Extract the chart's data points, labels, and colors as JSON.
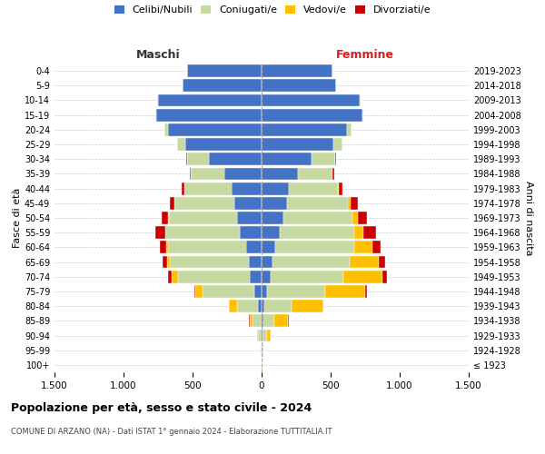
{
  "age_groups": [
    "100+",
    "95-99",
    "90-94",
    "85-89",
    "80-84",
    "75-79",
    "70-74",
    "65-69",
    "60-64",
    "55-59",
    "50-54",
    "45-49",
    "40-44",
    "35-39",
    "30-34",
    "25-29",
    "20-24",
    "15-19",
    "10-14",
    "5-9",
    "0-4"
  ],
  "birth_years": [
    "≤ 1923",
    "1924-1928",
    "1929-1933",
    "1934-1938",
    "1939-1943",
    "1944-1948",
    "1949-1953",
    "1954-1958",
    "1959-1963",
    "1964-1968",
    "1969-1973",
    "1974-1978",
    "1979-1983",
    "1984-1988",
    "1989-1993",
    "1994-1998",
    "1999-2003",
    "2004-2008",
    "2009-2013",
    "2014-2018",
    "2019-2023"
  ],
  "males": {
    "celibi": [
      2,
      2,
      5,
      8,
      25,
      55,
      85,
      95,
      110,
      155,
      180,
      200,
      220,
      270,
      380,
      550,
      680,
      760,
      750,
      570,
      540
    ],
    "coniugati": [
      1,
      3,
      20,
      60,
      155,
      370,
      520,
      570,
      570,
      540,
      490,
      430,
      340,
      240,
      160,
      60,
      25,
      8,
      5,
      2,
      1
    ],
    "vedovi": [
      0,
      0,
      5,
      20,
      55,
      55,
      45,
      20,
      10,
      5,
      5,
      3,
      2,
      1,
      0,
      0,
      0,
      0,
      0,
      0,
      0
    ],
    "divorziati": [
      0,
      0,
      1,
      3,
      5,
      10,
      30,
      35,
      50,
      70,
      50,
      30,
      20,
      10,
      5,
      2,
      1,
      0,
      0,
      0,
      0
    ]
  },
  "females": {
    "nubili": [
      2,
      3,
      8,
      12,
      20,
      40,
      65,
      80,
      100,
      130,
      155,
      185,
      200,
      260,
      360,
      520,
      620,
      730,
      710,
      540,
      510
    ],
    "coniugate": [
      1,
      5,
      30,
      80,
      195,
      420,
      530,
      560,
      570,
      540,
      500,
      440,
      350,
      250,
      170,
      65,
      30,
      10,
      5,
      2,
      1
    ],
    "vedove": [
      1,
      5,
      30,
      100,
      230,
      290,
      280,
      210,
      130,
      70,
      40,
      20,
      10,
      5,
      2,
      1,
      0,
      0,
      0,
      0,
      0
    ],
    "divorziate": [
      0,
      0,
      1,
      3,
      5,
      10,
      35,
      45,
      65,
      90,
      70,
      50,
      25,
      12,
      5,
      2,
      1,
      0,
      0,
      0,
      0
    ]
  },
  "colors": {
    "celibi": "#4472c4",
    "coniugati": "#c5d9a0",
    "vedovi": "#ffc000",
    "divorziati": "#cc0000"
  },
  "title": "Popolazione per età, sesso e stato civile - 2024",
  "subtitle": "COMUNE DI ARZANO (NA) - Dati ISTAT 1° gennaio 2024 - Elaborazione TUTTITALIA.IT",
  "xlabel_left": "Maschi",
  "xlabel_right": "Femmine",
  "ylabel_left": "Fasce di età",
  "ylabel_right": "Anni di nascita",
  "xlim": 1500,
  "xticks": [
    -1500,
    -1000,
    -500,
    0,
    500,
    1000,
    1500
  ],
  "xticklabels": [
    "1.500",
    "1.000",
    "500",
    "0",
    "500",
    "1.000",
    "1.500"
  ],
  "legend_labels": [
    "Celibi/Nubili",
    "Coniugati/e",
    "Vedovi/e",
    "Divorziati/e"
  ],
  "legend_colors": [
    "#4472c4",
    "#c5d9a0",
    "#ffc000",
    "#cc0000"
  ],
  "background_color": "#ffffff",
  "grid_color": "#cccccc"
}
